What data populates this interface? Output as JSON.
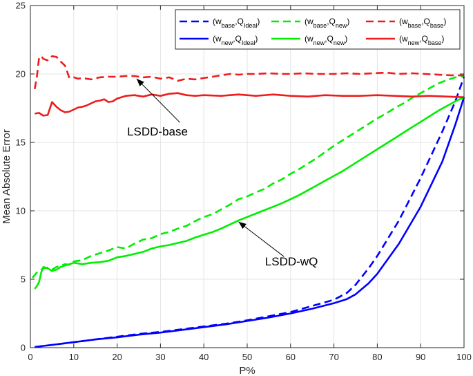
{
  "chart_data": {
    "type": "line",
    "title": "",
    "xlabel": "P%",
    "ylabel": "Mean Absolute Error",
    "xlim": [
      0,
      100
    ],
    "ylim": [
      0,
      25
    ],
    "grid": true,
    "legend_placement": "top-right",
    "x_ticks": [
      0,
      10,
      20,
      30,
      40,
      50,
      60,
      70,
      80,
      90,
      100
    ],
    "y_ticks": [
      0,
      5,
      10,
      15,
      20,
      25
    ],
    "series": [
      {
        "name": "(w_base,Q_Ideal)",
        "legend": {
          "w": "base",
          "q": "Ideal"
        },
        "color": "#0000ff",
        "dash": true,
        "points": [
          [
            1,
            0.05
          ],
          [
            5,
            0.2
          ],
          [
            10,
            0.4
          ],
          [
            15,
            0.6
          ],
          [
            20,
            0.8
          ],
          [
            25,
            1.0
          ],
          [
            30,
            1.15
          ],
          [
            35,
            1.35
          ],
          [
            40,
            1.55
          ],
          [
            45,
            1.75
          ],
          [
            50,
            2.0
          ],
          [
            55,
            2.3
          ],
          [
            60,
            2.6
          ],
          [
            65,
            3.05
          ],
          [
            70,
            3.5
          ],
          [
            73,
            4.0
          ],
          [
            75,
            4.6
          ],
          [
            78,
            5.8
          ],
          [
            80,
            6.7
          ],
          [
            85,
            9.3
          ],
          [
            90,
            12.4
          ],
          [
            95,
            15.8
          ],
          [
            98,
            18.0
          ],
          [
            100,
            19.8
          ]
        ]
      },
      {
        "name": "(w_new,Q_Ideal)",
        "legend": {
          "w": "new",
          "q": "Ideal"
        },
        "color": "#0000ff",
        "dash": false,
        "points": [
          [
            1,
            0.05
          ],
          [
            5,
            0.2
          ],
          [
            10,
            0.4
          ],
          [
            15,
            0.6
          ],
          [
            20,
            0.75
          ],
          [
            25,
            0.95
          ],
          [
            30,
            1.1
          ],
          [
            35,
            1.3
          ],
          [
            40,
            1.5
          ],
          [
            45,
            1.7
          ],
          [
            50,
            1.95
          ],
          [
            55,
            2.2
          ],
          [
            60,
            2.5
          ],
          [
            65,
            2.85
          ],
          [
            70,
            3.25
          ],
          [
            73,
            3.55
          ],
          [
            75,
            3.9
          ],
          [
            78,
            4.7
          ],
          [
            80,
            5.4
          ],
          [
            85,
            7.6
          ],
          [
            90,
            10.3
          ],
          [
            95,
            13.6
          ],
          [
            98,
            16.3
          ],
          [
            100,
            18.3
          ]
        ]
      },
      {
        "name": "(w_base,Q_new)",
        "legend": {
          "w": "base",
          "q": "new"
        },
        "color": "#00ee00",
        "dash": true,
        "points": [
          [
            0.5,
            5.1
          ],
          [
            1,
            5.3
          ],
          [
            1.5,
            5.5
          ],
          [
            2,
            5.6
          ],
          [
            2.5,
            5.7
          ],
          [
            3,
            5.8
          ],
          [
            4,
            5.85
          ],
          [
            5,
            5.7
          ],
          [
            6,
            5.9
          ],
          [
            7,
            6.0
          ],
          [
            8,
            6.1
          ],
          [
            9,
            6.05
          ],
          [
            10,
            6.3
          ],
          [
            12,
            6.4
          ],
          [
            14,
            6.7
          ],
          [
            16,
            6.9
          ],
          [
            18,
            7.1
          ],
          [
            20,
            7.35
          ],
          [
            22,
            7.25
          ],
          [
            24,
            7.6
          ],
          [
            26,
            7.9
          ],
          [
            28,
            8.0
          ],
          [
            30,
            8.3
          ],
          [
            32,
            8.45
          ],
          [
            34,
            8.7
          ],
          [
            36,
            8.9
          ],
          [
            38,
            9.25
          ],
          [
            40,
            9.55
          ],
          [
            42,
            9.75
          ],
          [
            44,
            10.1
          ],
          [
            46,
            10.45
          ],
          [
            48,
            10.85
          ],
          [
            50,
            11.05
          ],
          [
            52,
            11.35
          ],
          [
            54,
            11.6
          ],
          [
            56,
            12.0
          ],
          [
            58,
            12.3
          ],
          [
            60,
            12.7
          ],
          [
            62,
            13.05
          ],
          [
            64,
            13.45
          ],
          [
            66,
            13.85
          ],
          [
            68,
            14.3
          ],
          [
            70,
            14.75
          ],
          [
            72,
            15.15
          ],
          [
            74,
            15.55
          ],
          [
            76,
            15.95
          ],
          [
            78,
            16.35
          ],
          [
            80,
            16.75
          ],
          [
            82,
            17.1
          ],
          [
            84,
            17.5
          ],
          [
            86,
            17.85
          ],
          [
            88,
            18.25
          ],
          [
            90,
            18.6
          ],
          [
            92,
            18.95
          ],
          [
            94,
            19.3
          ],
          [
            96,
            19.55
          ],
          [
            98,
            19.75
          ],
          [
            100,
            19.85
          ]
        ]
      },
      {
        "name": "(w_new,Q_new)",
        "legend": {
          "w": "new",
          "q": "new"
        },
        "color": "#00ee00",
        "dash": false,
        "points": [
          [
            1,
            4.3
          ],
          [
            1.5,
            4.5
          ],
          [
            2,
            4.8
          ],
          [
            2.5,
            5.5
          ],
          [
            3,
            5.9
          ],
          [
            4,
            5.8
          ],
          [
            5,
            5.6
          ],
          [
            6,
            5.7
          ],
          [
            7,
            5.9
          ],
          [
            8,
            6.0
          ],
          [
            9,
            6.1
          ],
          [
            10,
            6.2
          ],
          [
            12,
            6.1
          ],
          [
            14,
            6.2
          ],
          [
            16,
            6.25
          ],
          [
            18,
            6.35
          ],
          [
            20,
            6.6
          ],
          [
            22,
            6.7
          ],
          [
            24,
            6.85
          ],
          [
            26,
            7.0
          ],
          [
            28,
            7.25
          ],
          [
            30,
            7.4
          ],
          [
            32,
            7.5
          ],
          [
            34,
            7.65
          ],
          [
            36,
            7.8
          ],
          [
            38,
            8.05
          ],
          [
            40,
            8.25
          ],
          [
            42,
            8.45
          ],
          [
            44,
            8.7
          ],
          [
            46,
            9.0
          ],
          [
            48,
            9.3
          ],
          [
            50,
            9.55
          ],
          [
            52,
            9.8
          ],
          [
            54,
            10.05
          ],
          [
            56,
            10.3
          ],
          [
            58,
            10.55
          ],
          [
            60,
            10.85
          ],
          [
            62,
            11.15
          ],
          [
            64,
            11.5
          ],
          [
            66,
            11.85
          ],
          [
            68,
            12.2
          ],
          [
            70,
            12.55
          ],
          [
            72,
            12.9
          ],
          [
            74,
            13.3
          ],
          [
            76,
            13.7
          ],
          [
            78,
            14.1
          ],
          [
            80,
            14.5
          ],
          [
            82,
            14.9
          ],
          [
            84,
            15.3
          ],
          [
            86,
            15.7
          ],
          [
            88,
            16.1
          ],
          [
            90,
            16.5
          ],
          [
            92,
            16.9
          ],
          [
            94,
            17.3
          ],
          [
            96,
            17.65
          ],
          [
            98,
            18.0
          ],
          [
            100,
            18.3
          ]
        ]
      },
      {
        "name": "(w_base,Q_base)",
        "legend": {
          "w": "base",
          "q": "base"
        },
        "color": "#ee1c1c",
        "dash": true,
        "points": [
          [
            1,
            18.9
          ],
          [
            1.5,
            19.8
          ],
          [
            2,
            21.2
          ],
          [
            2.5,
            21.3
          ],
          [
            3,
            21.1
          ],
          [
            4,
            21.0
          ],
          [
            5,
            21.3
          ],
          [
            6,
            21.25
          ],
          [
            7,
            20.9
          ],
          [
            8,
            20.6
          ],
          [
            9,
            19.7
          ],
          [
            10,
            19.75
          ],
          [
            11,
            19.65
          ],
          [
            12,
            19.7
          ],
          [
            14,
            19.6
          ],
          [
            16,
            19.75
          ],
          [
            18,
            19.8
          ],
          [
            20,
            19.8
          ],
          [
            22,
            19.85
          ],
          [
            24,
            19.85
          ],
          [
            26,
            19.75
          ],
          [
            28,
            19.8
          ],
          [
            30,
            19.65
          ],
          [
            32,
            19.75
          ],
          [
            34,
            19.5
          ],
          [
            36,
            19.65
          ],
          [
            38,
            19.6
          ],
          [
            40,
            19.7
          ],
          [
            42,
            19.8
          ],
          [
            44,
            19.9
          ],
          [
            46,
            20.0
          ],
          [
            48,
            19.95
          ],
          [
            50,
            20.0
          ],
          [
            52,
            20.0
          ],
          [
            55,
            20.05
          ],
          [
            58,
            20.0
          ],
          [
            60,
            20.0
          ],
          [
            63,
            20.05
          ],
          [
            66,
            20.0
          ],
          [
            70,
            20.0
          ],
          [
            73,
            20.05
          ],
          [
            76,
            20.0
          ],
          [
            79,
            20.05
          ],
          [
            82,
            20.1
          ],
          [
            85,
            20.0
          ],
          [
            88,
            20.05
          ],
          [
            91,
            20.0
          ],
          [
            94,
            19.95
          ],
          [
            97,
            19.9
          ],
          [
            100,
            19.9
          ]
        ]
      },
      {
        "name": "(w_new,Q_base)",
        "legend": {
          "w": "new",
          "q": "base"
        },
        "color": "#ee1c1c",
        "dash": false,
        "points": [
          [
            1,
            17.1
          ],
          [
            2,
            17.15
          ],
          [
            3,
            16.95
          ],
          [
            4,
            17.0
          ],
          [
            5,
            17.95
          ],
          [
            6,
            17.6
          ],
          [
            7,
            17.35
          ],
          [
            8,
            17.2
          ],
          [
            9,
            17.25
          ],
          [
            10,
            17.4
          ],
          [
            11,
            17.55
          ],
          [
            12,
            17.6
          ],
          [
            13,
            17.7
          ],
          [
            14,
            17.85
          ],
          [
            15,
            18.0
          ],
          [
            16,
            18.05
          ],
          [
            17,
            18.15
          ],
          [
            18,
            17.95
          ],
          [
            19,
            18.0
          ],
          [
            20,
            18.2
          ],
          [
            22,
            18.4
          ],
          [
            24,
            18.45
          ],
          [
            26,
            18.35
          ],
          [
            28,
            18.5
          ],
          [
            30,
            18.4
          ],
          [
            32,
            18.55
          ],
          [
            34,
            18.6
          ],
          [
            36,
            18.45
          ],
          [
            38,
            18.4
          ],
          [
            40,
            18.45
          ],
          [
            44,
            18.4
          ],
          [
            48,
            18.5
          ],
          [
            52,
            18.4
          ],
          [
            56,
            18.5
          ],
          [
            60,
            18.4
          ],
          [
            64,
            18.35
          ],
          [
            68,
            18.45
          ],
          [
            72,
            18.4
          ],
          [
            76,
            18.4
          ],
          [
            80,
            18.45
          ],
          [
            84,
            18.4
          ],
          [
            88,
            18.35
          ],
          [
            92,
            18.4
          ],
          [
            96,
            18.35
          ],
          [
            100,
            18.3
          ]
        ]
      }
    ],
    "annotations": [
      {
        "text": "LSDD-base",
        "text_at": [
          29.3,
          15.5
        ],
        "arrow_from": [
          34.5,
          16.45
        ],
        "arrow_to": [
          24.5,
          19.65
        ]
      },
      {
        "text": "LSDD-wQ",
        "text_at": [
          60.2,
          6.0
        ],
        "arrow_from": [
          58.5,
          6.65
        ],
        "arrow_to": [
          48.0,
          9.2
        ]
      }
    ]
  }
}
